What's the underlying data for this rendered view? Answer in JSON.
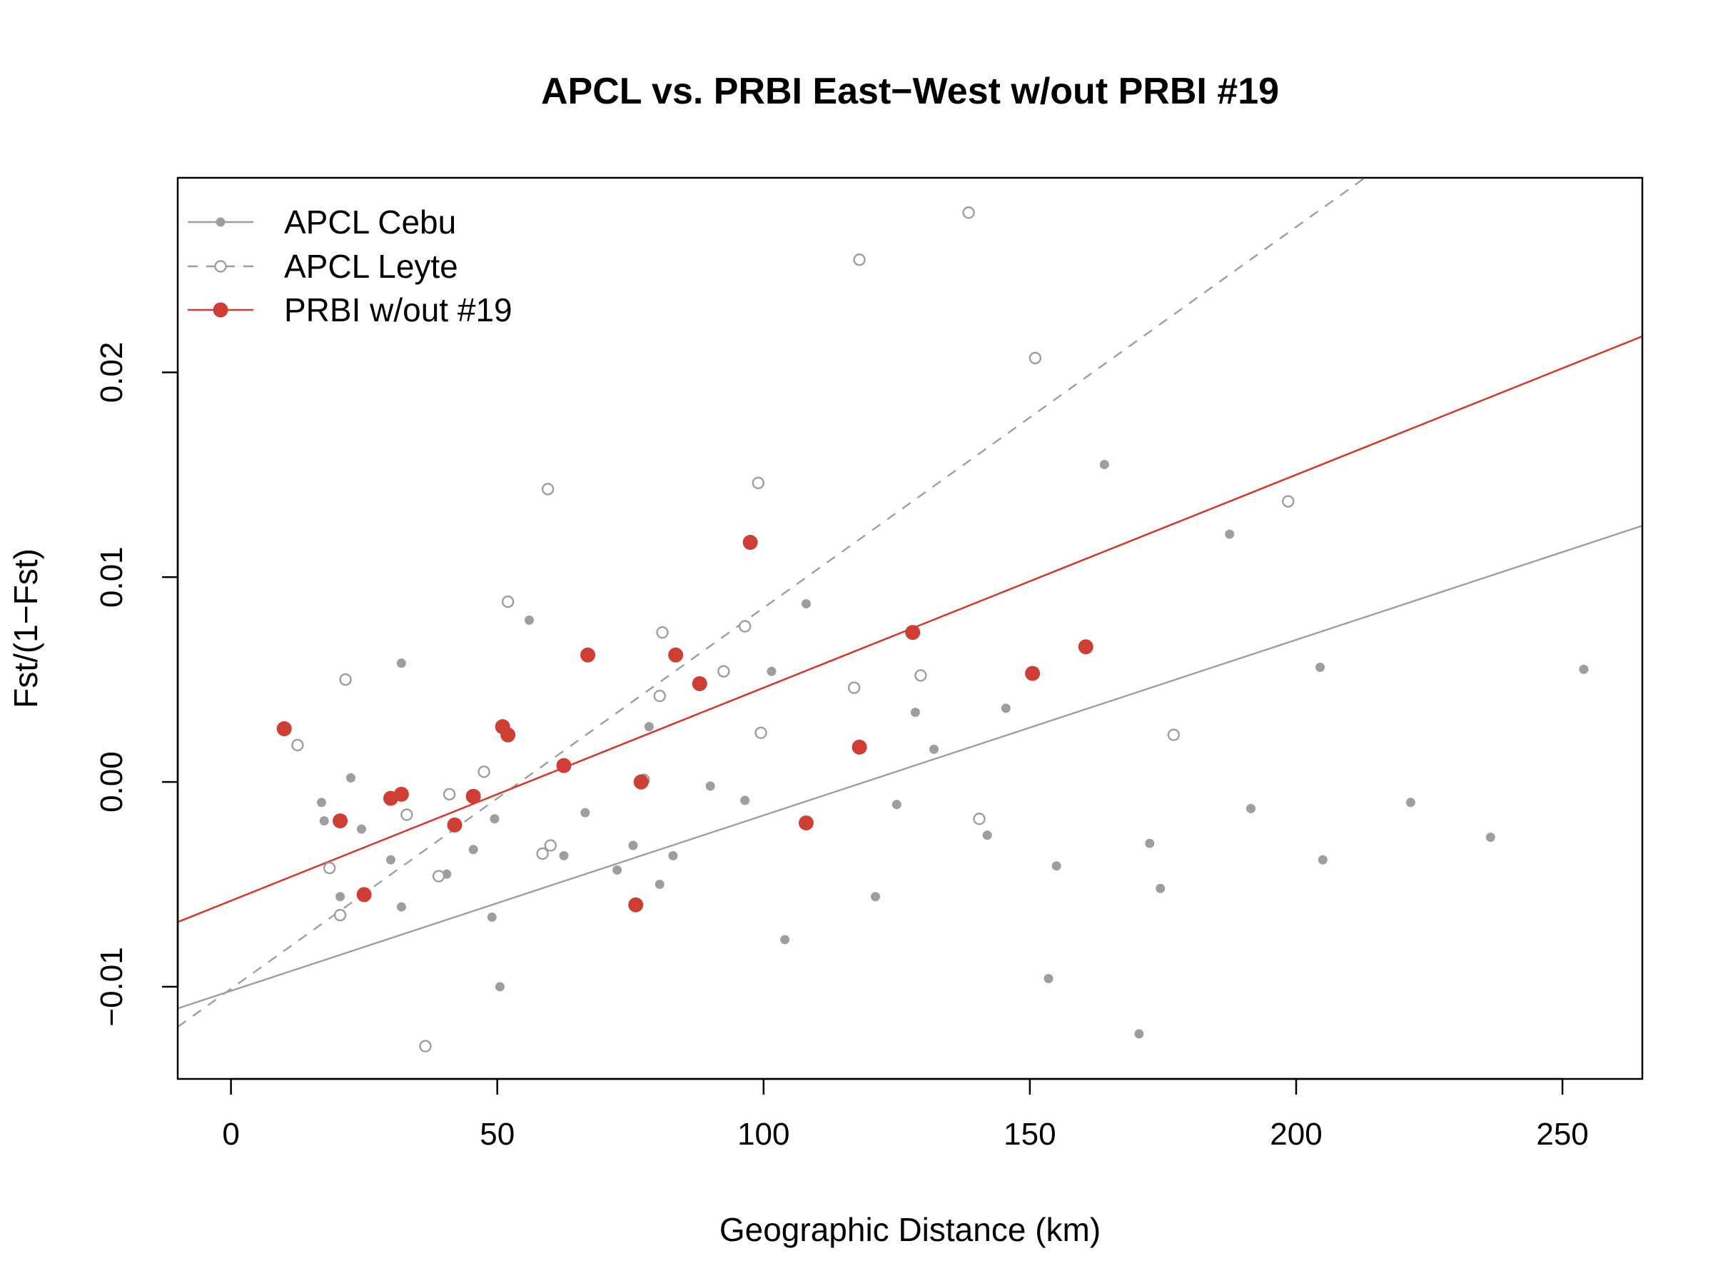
{
  "chart_data": {
    "type": "scatter",
    "title": "APCL vs. PRBI East−West w/out PRBI #19",
    "xlabel": "Geographic Distance (km)",
    "ylabel": "Fst/(1−Fst)",
    "xlim": [
      -10,
      265
    ],
    "ylim": [
      -0.0145,
      0.0295
    ],
    "x_ticks": [
      0,
      50,
      100,
      150,
      200,
      250
    ],
    "x_tick_labels": [
      "0",
      "50",
      "100",
      "150",
      "200",
      "250"
    ],
    "y_ticks": [
      -0.01,
      0.0,
      0.01,
      0.02
    ],
    "y_tick_labels": [
      "−0.01",
      "0.00",
      "0.01",
      "0.02"
    ],
    "grid": false,
    "legend_position": "top-left",
    "series": [
      {
        "name": "APCL Cebu",
        "color": "#9e9e9e",
        "marker": "filled-small",
        "line_style": "solid",
        "fit": {
          "intercept": -0.0102,
          "slope": 8.57e-05
        },
        "points": [
          [
            17,
            -0.001
          ],
          [
            17.5,
            -0.0019
          ],
          [
            22.5,
            0.0002
          ],
          [
            24.5,
            -0.0023
          ],
          [
            20.5,
            -0.0056
          ],
          [
            30,
            -0.0038
          ],
          [
            32,
            -0.0061
          ],
          [
            32,
            0.0058
          ],
          [
            40.5,
            -0.0045
          ],
          [
            45.5,
            -0.0033
          ],
          [
            49,
            -0.0066
          ],
          [
            49.5,
            -0.0018
          ],
          [
            50.5,
            -0.01
          ],
          [
            56,
            0.0079
          ],
          [
            62.5,
            -0.0036
          ],
          [
            66.5,
            -0.0015
          ],
          [
            72.5,
            -0.0043
          ],
          [
            75.5,
            -0.0031
          ],
          [
            78.5,
            0.0027
          ],
          [
            80.5,
            -0.005
          ],
          [
            83,
            -0.0036
          ],
          [
            90,
            -0.0002
          ],
          [
            96.5,
            -0.0009
          ],
          [
            101.5,
            0.0054
          ],
          [
            104,
            -0.0077
          ],
          [
            108,
            0.0087
          ],
          [
            121,
            -0.0056
          ],
          [
            125,
            -0.0011
          ],
          [
            128.5,
            0.0034
          ],
          [
            132,
            0.0016
          ],
          [
            145.5,
            0.0036
          ],
          [
            142,
            -0.0026
          ],
          [
            153.5,
            -0.0096
          ],
          [
            155,
            -0.0041
          ],
          [
            164,
            0.0155
          ],
          [
            170.5,
            -0.0123
          ],
          [
            172.5,
            -0.003
          ],
          [
            174.5,
            -0.0052
          ],
          [
            187.5,
            0.0121
          ],
          [
            191.5,
            -0.0013
          ],
          [
            204.5,
            0.0056
          ],
          [
            205,
            -0.0038
          ],
          [
            221.5,
            -0.001
          ],
          [
            236.5,
            -0.0027
          ],
          [
            254,
            0.0055
          ]
        ]
      },
      {
        "name": "APCL Leyte",
        "color": "#9e9e9e",
        "marker": "open-circle",
        "line_style": "dashed",
        "fit": {
          "intercept": -0.0101,
          "slope": 0.000186
        },
        "points": [
          [
            12.5,
            0.0018
          ],
          [
            18.5,
            -0.0042
          ],
          [
            20.5,
            -0.0065
          ],
          [
            21.5,
            0.005
          ],
          [
            33,
            -0.0016
          ],
          [
            36.5,
            -0.0129
          ],
          [
            39,
            -0.0046
          ],
          [
            41,
            -0.0006
          ],
          [
            47.5,
            0.0005
          ],
          [
            52,
            0.0088
          ],
          [
            58.5,
            -0.0035
          ],
          [
            59.5,
            0.0143
          ],
          [
            60,
            -0.0031
          ],
          [
            77.5,
            0.0001
          ],
          [
            80.5,
            0.0042
          ],
          [
            81,
            0.0073
          ],
          [
            92.5,
            0.0054
          ],
          [
            96.5,
            0.0076
          ],
          [
            99,
            0.0146
          ],
          [
            99.5,
            0.0024
          ],
          [
            117,
            0.0046
          ],
          [
            118,
            0.0255
          ],
          [
            129.5,
            0.0052
          ],
          [
            138.5,
            0.0278
          ],
          [
            140.5,
            -0.0018
          ],
          [
            151,
            0.0207
          ],
          [
            177,
            0.0023
          ],
          [
            198.5,
            0.0137
          ]
        ]
      },
      {
        "name": "PRBI w/out #19",
        "color": "#cf3e34",
        "marker": "filled-large",
        "line_style": "solid",
        "fit": {
          "intercept": -0.0058,
          "slope": 0.000104
        },
        "points": [
          [
            10,
            0.0026
          ],
          [
            20.5,
            -0.0019
          ],
          [
            25,
            -0.0055
          ],
          [
            30,
            -0.0008
          ],
          [
            32,
            -0.0006
          ],
          [
            42,
            -0.0021
          ],
          [
            45.5,
            -0.0007
          ],
          [
            51,
            0.0027
          ],
          [
            52,
            0.0023
          ],
          [
            62.5,
            0.0008
          ],
          [
            67,
            0.0062
          ],
          [
            76,
            -0.006
          ],
          [
            77,
            0.0
          ],
          [
            83.5,
            0.0062
          ],
          [
            88,
            0.0048
          ],
          [
            97.5,
            0.0117
          ],
          [
            108,
            -0.002
          ],
          [
            118,
            0.0017
          ],
          [
            128,
            0.0073
          ],
          [
            150.5,
            0.0053
          ],
          [
            160.5,
            0.0066
          ]
        ]
      }
    ]
  }
}
